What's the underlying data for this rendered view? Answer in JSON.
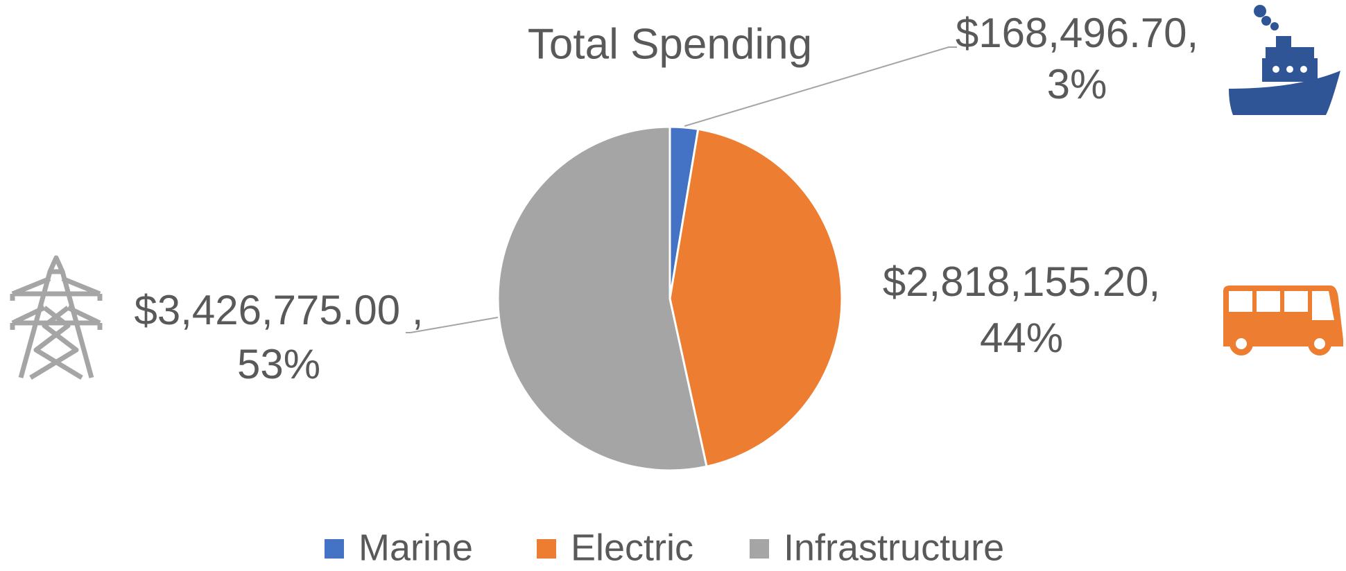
{
  "chart_data": {
    "type": "pie",
    "title": "Total Spending",
    "categories": [
      "Marine",
      "Electric",
      "Infrastructure"
    ],
    "values": [
      168496.7,
      2818155.2,
      3426775.0
    ],
    "value_labels": [
      "$168,496.70,",
      "$2,818,155.20,",
      "$3,426,775.00 ,"
    ],
    "percent_labels": [
      "3%",
      "44%",
      "53%"
    ],
    "colors": [
      "#4472c4",
      "#ed7d31",
      "#a5a5a5"
    ],
    "legend": "bottom"
  }
}
